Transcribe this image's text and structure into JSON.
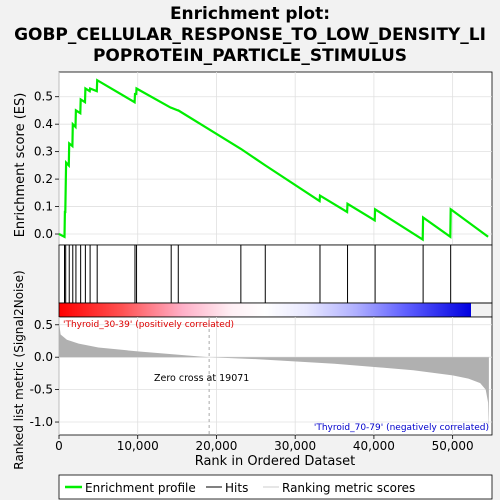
{
  "title_lines": [
    "Enrichment plot:",
    "GOBP_CELLULAR_RESPONSE_TO_LOW_DENSITY_LI",
    "POPROTEIN_PARTICLE_STIMULUS"
  ],
  "colors": {
    "es_line": "#00ee00",
    "hits": "#000000",
    "metric": "#b0b0b0",
    "pos_label": "#dd0000",
    "neg_label": "#0000cc",
    "background": "#f2f2f2"
  },
  "chart_data": [
    {
      "type": "line",
      "ylabel": "Enrichment score (ES)",
      "xlim": [
        0,
        55000
      ],
      "ylim": [
        -0.04,
        0.59
      ],
      "yticks": [
        0.0,
        0.1,
        0.2,
        0.3,
        0.4,
        0.5
      ],
      "grid": true,
      "series": [
        {
          "name": "Enrichment profile",
          "x": [
            0,
            700,
            750,
            800,
            850,
            900,
            1250,
            1300,
            1700,
            1750,
            2100,
            2150,
            2700,
            2750,
            3300,
            3350,
            3900,
            3950,
            4800,
            4850,
            9600,
            9650,
            9800,
            9850,
            14200,
            14250,
            15100,
            15150,
            23100,
            26200,
            33100,
            33150,
            36600,
            36650,
            40100,
            40150,
            46200,
            46250,
            49700,
            49750,
            54500
          ],
          "y": [
            0.0,
            -0.01,
            0.08,
            0.08,
            0.17,
            0.26,
            0.25,
            0.33,
            0.32,
            0.4,
            0.39,
            0.45,
            0.44,
            0.49,
            0.48,
            0.53,
            0.52,
            0.53,
            0.52,
            0.56,
            0.48,
            0.51,
            0.51,
            0.53,
            0.46,
            0.46,
            0.45,
            0.45,
            0.31,
            0.25,
            0.12,
            0.14,
            0.08,
            0.11,
            0.05,
            0.09,
            -0.02,
            0.06,
            -0.01,
            0.09,
            -0.01
          ]
        }
      ]
    },
    {
      "type": "hits",
      "name": "Hits",
      "positions": [
        700,
        850,
        1300,
        1750,
        2150,
        2750,
        3350,
        3950,
        4850,
        9650,
        9850,
        14250,
        15150,
        23100,
        26200,
        33150,
        36650,
        40150,
        46250,
        49750
      ]
    },
    {
      "type": "area",
      "name": "Ranking metric scores",
      "ylabel": "Ranked list metric (Signal2Noise)",
      "xlabel": "Rank in Ordered Dataset",
      "xlim": [
        0,
        55000
      ],
      "ylim": [
        -1.2,
        0.62
      ],
      "yticks": [
        0.5,
        0.0,
        -0.5,
        -1.0
      ],
      "xticks": [
        0,
        10000,
        20000,
        30000,
        40000,
        50000
      ],
      "xtick_labels": [
        "0",
        "10,000",
        "20,000",
        "30,000",
        "40,000",
        "50,000"
      ],
      "x": [
        0,
        200,
        1000,
        2500,
        5000,
        10000,
        15000,
        19071,
        25000,
        35000,
        45000,
        50000,
        52000,
        53500,
        54200,
        54500,
        54600
      ],
      "y": [
        0.55,
        0.35,
        0.27,
        0.21,
        0.15,
        0.09,
        0.04,
        0.0,
        -0.03,
        -0.1,
        -0.2,
        -0.28,
        -0.33,
        -0.4,
        -0.5,
        -0.7,
        -1.15
      ],
      "annotations": {
        "zero_cross": "Zero cross at 19071",
        "pos_label": "'Thyroid_30-39' (positively correlated)",
        "neg_label": "'Thyroid_70-79' (negatively correlated)"
      }
    }
  ],
  "legend": [
    {
      "label": "Enrichment profile",
      "kind": "line"
    },
    {
      "label": "Hits",
      "kind": "hits"
    },
    {
      "label": "Ranking metric scores",
      "kind": "metric"
    }
  ]
}
